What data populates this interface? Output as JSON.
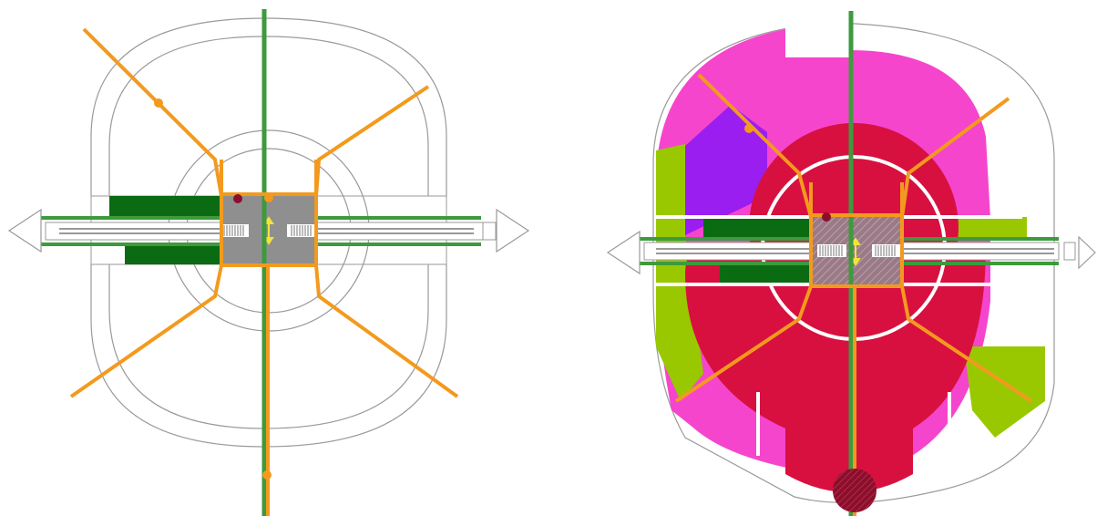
{
  "colors": {
    "background": "#ffffff",
    "outline": "#9a9a9a",
    "road_orange": "#f39a1e",
    "transit_green": "#3e9a3c",
    "park_dark_green": "#0a6b12",
    "station_gray": "#8f8f8f",
    "core_red": "#d8103f",
    "ring_magenta": "#f545cc",
    "purple": "#9a1ef0",
    "lime": "#99c800",
    "node_maroon": "#8a0f2a",
    "arrow_yellow": "#f5e13c"
  },
  "diagrams": [
    {
      "id": "left-diagram",
      "variant": "plan-outline"
    },
    {
      "id": "right-diagram",
      "variant": "plan-land-use"
    }
  ],
  "icons": [
    "arrow-left-icon",
    "arrow-right-icon",
    "bidirectional-arrow-icon",
    "stop-marker-icon"
  ]
}
